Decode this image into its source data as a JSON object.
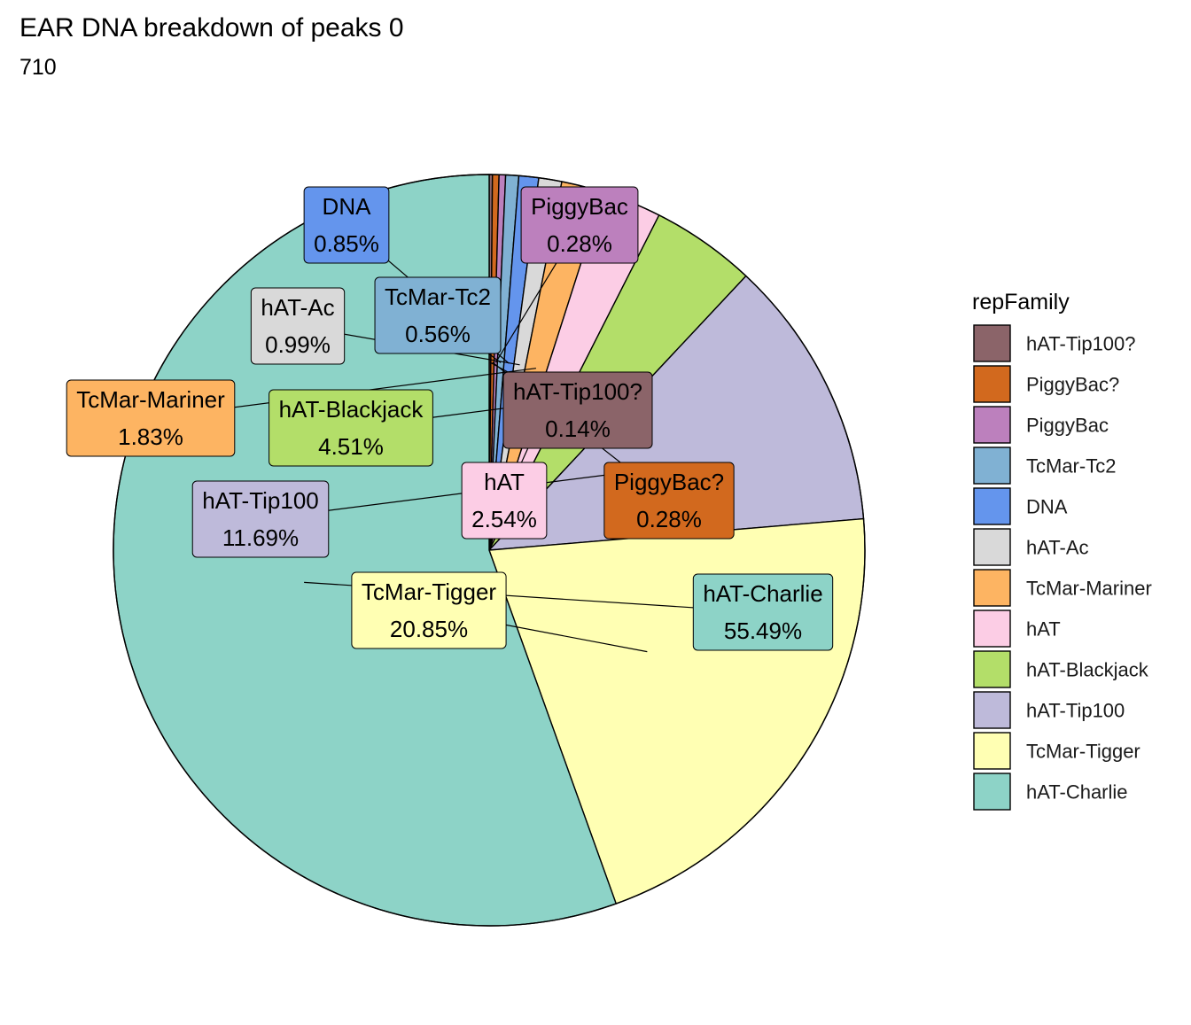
{
  "chart_data": {
    "type": "pie",
    "title": "EAR DNA breakdown of peaks 0",
    "subtitle": "710",
    "legend": {
      "title": "repFamily",
      "placement": "right"
    },
    "slices": [
      {
        "name": "hAT-Tip100?",
        "value": 0.14,
        "label": "0.14%",
        "color": "#8B6469",
        "text_color": "#000000"
      },
      {
        "name": "PiggyBac?",
        "value": 0.28,
        "label": "0.28%",
        "color": "#D2691E",
        "text_color": "#000000"
      },
      {
        "name": "PiggyBac",
        "value": 0.28,
        "label": "0.28%",
        "color": "#BC80BD",
        "text_color": "#000000"
      },
      {
        "name": "TcMar-Tc2",
        "value": 0.56,
        "label": "0.56%",
        "color": "#80B1D3",
        "text_color": "#000000"
      },
      {
        "name": "DNA",
        "value": 0.85,
        "label": "0.85%",
        "color": "#6495ED",
        "text_color": "#000000"
      },
      {
        "name": "hAT-Ac",
        "value": 0.99,
        "label": "0.99%",
        "color": "#D9D9D9",
        "text_color": "#000000"
      },
      {
        "name": "TcMar-Mariner",
        "value": 1.83,
        "label": "1.83%",
        "color": "#FDB462",
        "text_color": "#000000"
      },
      {
        "name": "hAT",
        "value": 2.54,
        "label": "2.54%",
        "color": "#FCCDE5",
        "text_color": "#000000"
      },
      {
        "name": "hAT-Blackjack",
        "value": 4.51,
        "label": "4.51%",
        "color": "#B3DE69",
        "text_color": "#000000"
      },
      {
        "name": "hAT-Tip100",
        "value": 11.69,
        "label": "11.69%",
        "color": "#BEBADA",
        "text_color": "#000000"
      },
      {
        "name": "TcMar-Tigger",
        "value": 20.85,
        "label": "20.85%",
        "color": "#FFFFB3",
        "text_color": "#000000"
      },
      {
        "name": "hAT-Charlie",
        "value": 55.49,
        "label": "55.49%",
        "color": "#8DD3C7",
        "text_color": "#000000"
      }
    ]
  }
}
